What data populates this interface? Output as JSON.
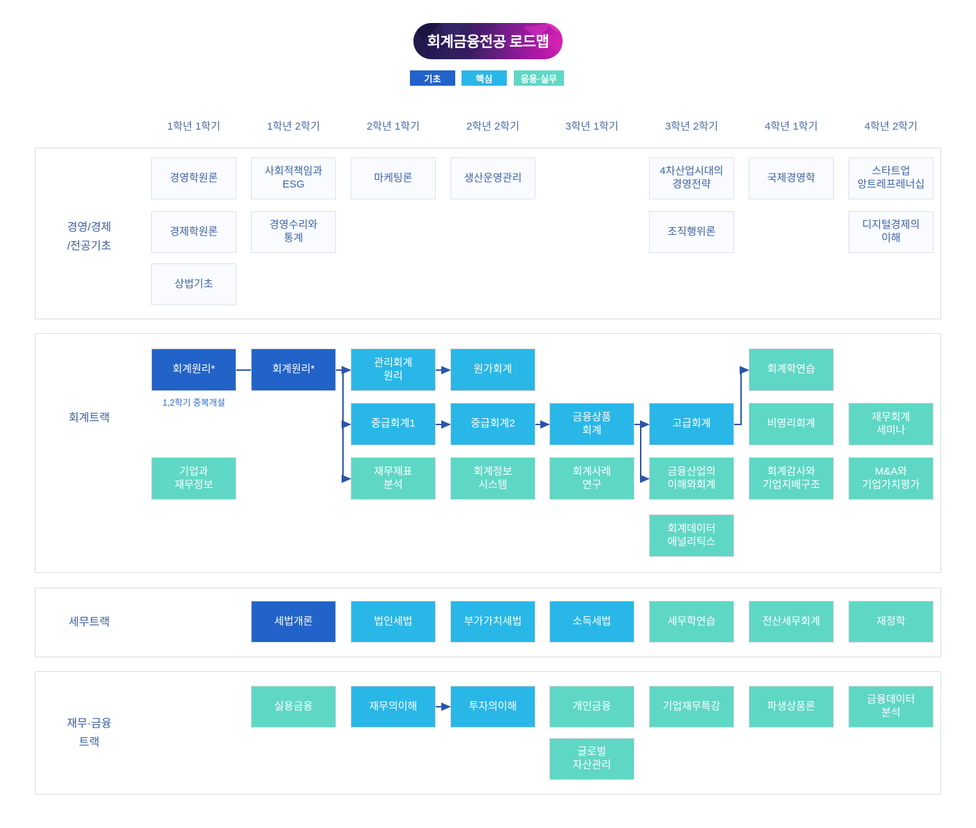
{
  "title": "회계금융전공 로드맵",
  "legend": [
    {
      "label": "기초",
      "type": "basic"
    },
    {
      "label": "핵심",
      "type": "core"
    },
    {
      "label": "응용·실무",
      "type": "applied"
    }
  ],
  "columns": [
    "1학년 1학기",
    "1학년 2학기",
    "2학년 1학기",
    "2학년 2학기",
    "3학년 1학기",
    "3학년 2학기",
    "4학년 1학기",
    "4학년 2학기"
  ],
  "colors": {
    "basic": "#2263c9",
    "core": "#29b7e8",
    "applied": "#5fd7c5",
    "arrow": "#2b55a9"
  },
  "sections": [
    {
      "id": "foundation",
      "label": "경영/경제\n/전공기초",
      "courses": [
        {
          "label": "경영학원론",
          "col": 1,
          "row": 1,
          "type": "plain"
        },
        {
          "label": "사회적책임과\nESG",
          "col": 2,
          "row": 1,
          "type": "plain"
        },
        {
          "label": "마케팅론",
          "col": 3,
          "row": 1,
          "type": "plain"
        },
        {
          "label": "생산운영관리",
          "col": 4,
          "row": 1,
          "type": "plain"
        },
        {
          "label": "4차산업시대의\n경영전략",
          "col": 6,
          "row": 1,
          "type": "plain"
        },
        {
          "label": "국제경영학",
          "col": 7,
          "row": 1,
          "type": "plain"
        },
        {
          "label": "스타트업\n앙트레프레너십",
          "col": 8,
          "row": 1,
          "type": "plain"
        },
        {
          "label": "경제학원론",
          "col": 1,
          "row": 2,
          "type": "plain"
        },
        {
          "label": "경영수리와\n통계",
          "col": 2,
          "row": 2,
          "type": "plain"
        },
        {
          "label": "조직행위론",
          "col": 6,
          "row": 2,
          "type": "plain"
        },
        {
          "label": "디지털경제의\n이해",
          "col": 8,
          "row": 2,
          "type": "plain"
        },
        {
          "label": "상법기초",
          "col": 1,
          "row": 3,
          "type": "plain"
        }
      ]
    },
    {
      "id": "accounting-track",
      "label": "회계트랙",
      "note": "1,2학기 중복개설",
      "courses": [
        {
          "id": "acct-principles-1",
          "label": "회계원리*",
          "col": 1,
          "row": 1,
          "type": "basic"
        },
        {
          "id": "acct-principles-2",
          "label": "회계원리*",
          "col": 2,
          "row": 1,
          "type": "basic"
        },
        {
          "id": "managerial-acct",
          "label": "관리회계\n원리",
          "col": 3,
          "row": 1,
          "type": "core"
        },
        {
          "id": "cost-acct",
          "label": "원가회계",
          "col": 4,
          "row": 1,
          "type": "core"
        },
        {
          "id": "acct-practice",
          "label": "회계학연습",
          "col": 7,
          "row": 1,
          "type": "applied"
        },
        {
          "id": "intermediate-acct-1",
          "label": "중급회계1",
          "col": 3,
          "row": 2,
          "type": "core"
        },
        {
          "id": "intermediate-acct-2",
          "label": "중급회계2",
          "col": 4,
          "row": 2,
          "type": "core"
        },
        {
          "id": "financial-instruments-acct",
          "label": "금융상품\n회계",
          "col": 5,
          "row": 2,
          "type": "core"
        },
        {
          "id": "advanced-acct",
          "label": "고급회계",
          "col": 6,
          "row": 2,
          "type": "core"
        },
        {
          "id": "nonprofit-acct",
          "label": "비영리회계",
          "col": 7,
          "row": 2,
          "type": "applied"
        },
        {
          "id": "fin-acct-seminar",
          "label": "재무회계\n세미나",
          "col": 8,
          "row": 2,
          "type": "applied"
        },
        {
          "id": "corp-fin-info",
          "label": "기업과\n재무정보",
          "col": 1,
          "row": 3,
          "type": "applied"
        },
        {
          "id": "fs-analysis",
          "label": "재무제표\n분석",
          "col": 3,
          "row": 3,
          "type": "applied"
        },
        {
          "id": "acct-info-systems",
          "label": "회계정보\n시스템",
          "col": 4,
          "row": 3,
          "type": "applied"
        },
        {
          "id": "acct-case-study",
          "label": "회계사례\n연구",
          "col": 5,
          "row": 3,
          "type": "applied"
        },
        {
          "id": "financial-industry-acct",
          "label": "금융산업의\n이해와회계",
          "col": 6,
          "row": 3,
          "type": "applied"
        },
        {
          "id": "audit-governance",
          "label": "회계감사와\n기업지배구조",
          "col": 7,
          "row": 3,
          "type": "applied"
        },
        {
          "id": "mna-valuation",
          "label": "M&A와\n기업가치평가",
          "col": 8,
          "row": 3,
          "type": "applied"
        },
        {
          "id": "acct-data-analytics",
          "label": "회계데이터\n애널리틱스",
          "col": 6,
          "row": 4,
          "type": "applied"
        }
      ]
    },
    {
      "id": "tax-track",
      "label": "세무트랙",
      "courses": [
        {
          "label": "세법개론",
          "col": 2,
          "row": 1,
          "type": "basic"
        },
        {
          "label": "법인세법",
          "col": 3,
          "row": 1,
          "type": "core"
        },
        {
          "label": "부가가치세법",
          "col": 4,
          "row": 1,
          "type": "core"
        },
        {
          "label": "소득세법",
          "col": 5,
          "row": 1,
          "type": "core"
        },
        {
          "label": "세무학연습",
          "col": 6,
          "row": 1,
          "type": "applied"
        },
        {
          "label": "전산세무회계",
          "col": 7,
          "row": 1,
          "type": "applied"
        },
        {
          "label": "재정학",
          "col": 8,
          "row": 1,
          "type": "applied"
        }
      ]
    },
    {
      "id": "finance-track",
      "label": "재무·금융\n트랙",
      "courses": [
        {
          "label": "실용금융",
          "col": 2,
          "row": 1,
          "type": "applied"
        },
        {
          "id": "finance-understanding",
          "label": "재무의이해",
          "col": 3,
          "row": 1,
          "type": "core"
        },
        {
          "id": "investment-understanding",
          "label": "투자의이해",
          "col": 4,
          "row": 1,
          "type": "core"
        },
        {
          "label": "개인금융",
          "col": 5,
          "row": 1,
          "type": "applied"
        },
        {
          "label": "기업재무특강",
          "col": 6,
          "row": 1,
          "type": "applied"
        },
        {
          "label": "파생상품론",
          "col": 7,
          "row": 1,
          "type": "applied"
        },
        {
          "label": "금융데이터\n분석",
          "col": 8,
          "row": 1,
          "type": "applied"
        },
        {
          "label": "글로벌\n자산관리",
          "col": 5,
          "row": 2,
          "type": "applied"
        }
      ]
    }
  ],
  "connections": [
    {
      "from": "acct-principles-1",
      "to": "acct-principles-2",
      "route": "plain"
    },
    {
      "from": "acct-principles-2",
      "to": "managerial-acct",
      "route": "fan"
    },
    {
      "from": "acct-principles-2",
      "to": "intermediate-acct-1",
      "route": "fan"
    },
    {
      "from": "acct-principles-2",
      "to": "fs-analysis",
      "route": "fan"
    },
    {
      "from": "managerial-acct",
      "to": "cost-acct",
      "route": "straight"
    },
    {
      "from": "intermediate-acct-1",
      "to": "intermediate-acct-2",
      "route": "straight"
    },
    {
      "from": "intermediate-acct-2",
      "to": "financial-instruments-acct",
      "route": "straight"
    },
    {
      "from": "financial-instruments-acct",
      "to": "advanced-acct",
      "route": "straight"
    },
    {
      "from": "financial-instruments-acct",
      "to": "financial-industry-acct",
      "route": "branch-down"
    },
    {
      "from": "advanced-acct",
      "to": "acct-practice",
      "route": "elbow-up"
    },
    {
      "from": "finance-understanding",
      "to": "investment-understanding",
      "route": "straight"
    }
  ]
}
